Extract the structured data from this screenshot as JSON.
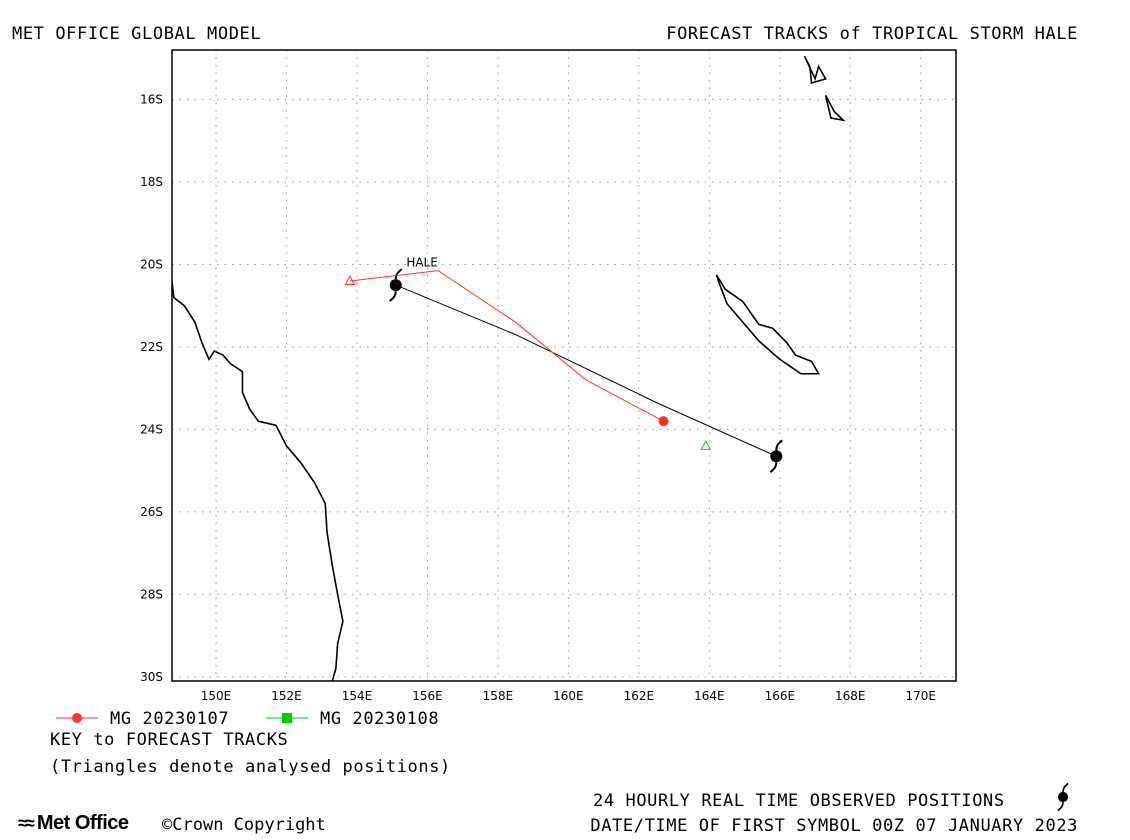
{
  "header": {
    "left_title": "MET OFFICE GLOBAL MODEL",
    "right_title": "FORECAST TRACKS of TROPICAL STORM HALE"
  },
  "map": {
    "lon_range": [
      148.75,
      171.0
    ],
    "lat_range": [
      -30.1,
      -14.8
    ],
    "lon_ticks": [
      {
        "value": 150,
        "label": "150E"
      },
      {
        "value": 152,
        "label": "152E"
      },
      {
        "value": 154,
        "label": "154E"
      },
      {
        "value": 156,
        "label": "156E"
      },
      {
        "value": 158,
        "label": "158E"
      },
      {
        "value": 160,
        "label": "160E"
      },
      {
        "value": 162,
        "label": "162E"
      },
      {
        "value": 164,
        "label": "164E"
      },
      {
        "value": 166,
        "label": "166E"
      },
      {
        "value": 168,
        "label": "168E"
      },
      {
        "value": 170,
        "label": "170E"
      }
    ],
    "lat_ticks": [
      {
        "value": -16,
        "label": "16S"
      },
      {
        "value": -18,
        "label": "18S"
      },
      {
        "value": -20,
        "label": "20S"
      },
      {
        "value": -22,
        "label": "22S"
      },
      {
        "value": -24,
        "label": "24S"
      },
      {
        "value": -26,
        "label": "26S"
      },
      {
        "value": -28,
        "label": "28S"
      },
      {
        "value": -30,
        "label": "30S"
      }
    ],
    "grid": true,
    "storm_label": "HALE",
    "coastlines": [
      [
        [
          148.75,
          -20.4
        ],
        [
          148.8,
          -20.8
        ],
        [
          149.1,
          -21.0
        ],
        [
          149.4,
          -21.4
        ],
        [
          149.6,
          -21.9
        ],
        [
          149.8,
          -22.3
        ],
        [
          149.95,
          -22.1
        ],
        [
          150.2,
          -22.2
        ],
        [
          150.4,
          -22.4
        ],
        [
          150.75,
          -22.6
        ],
        [
          150.75,
          -23.1
        ],
        [
          150.95,
          -23.5
        ],
        [
          151.2,
          -23.8
        ],
        [
          151.7,
          -23.9
        ],
        [
          152.0,
          -24.4
        ],
        [
          152.4,
          -24.8
        ],
        [
          152.8,
          -25.3
        ],
        [
          153.1,
          -25.8
        ],
        [
          153.15,
          -26.5
        ],
        [
          153.3,
          -27.3
        ],
        [
          153.45,
          -28.0
        ],
        [
          153.6,
          -28.65
        ],
        [
          153.45,
          -29.2
        ],
        [
          153.4,
          -29.8
        ],
        [
          153.3,
          -30.1
        ]
      ],
      [
        [
          164.2,
          -20.25
        ],
        [
          164.45,
          -20.6
        ],
        [
          164.95,
          -20.9
        ],
        [
          165.4,
          -21.45
        ],
        [
          165.8,
          -21.55
        ],
        [
          166.2,
          -21.9
        ],
        [
          166.45,
          -22.2
        ],
        [
          166.9,
          -22.35
        ],
        [
          167.1,
          -22.65
        ],
        [
          166.6,
          -22.65
        ],
        [
          166.0,
          -22.3
        ],
        [
          165.4,
          -21.85
        ],
        [
          164.9,
          -21.35
        ],
        [
          164.5,
          -20.95
        ],
        [
          164.3,
          -20.5
        ],
        [
          164.2,
          -20.25
        ]
      ],
      [
        [
          166.7,
          -14.95
        ],
        [
          166.85,
          -15.2
        ],
        [
          166.9,
          -15.6
        ],
        [
          167.3,
          -15.5
        ],
        [
          167.1,
          -15.2
        ],
        [
          167.0,
          -15.5
        ],
        [
          166.7,
          -14.95
        ]
      ],
      [
        [
          167.3,
          -15.9
        ],
        [
          167.55,
          -16.3
        ],
        [
          167.8,
          -16.5
        ],
        [
          167.45,
          -16.45
        ],
        [
          167.3,
          -15.9
        ]
      ]
    ]
  },
  "tracks": [
    {
      "name": "MG 20230107",
      "color": "#ff3333",
      "analysed": [
        153.8,
        -20.4
      ],
      "points": [
        [
          153.8,
          -20.4
        ],
        [
          156.3,
          -20.15
        ],
        [
          158.5,
          -21.4
        ],
        [
          160.5,
          -22.8
        ],
        [
          162.7,
          -23.8
        ]
      ]
    },
    {
      "name": "MG 20230108",
      "color": "#00cc00",
      "analysed": [
        163.9,
        -24.4
      ],
      "points": []
    }
  ],
  "observed_track": {
    "color": "#000000",
    "points": [
      [
        155.1,
        -20.5
      ],
      [
        158.5,
        -21.7
      ],
      [
        162.5,
        -23.35
      ],
      [
        165.9,
        -24.65
      ]
    ]
  },
  "legend": {
    "entries": [
      {
        "label": "MG 20230107",
        "color": "#ff3333"
      },
      {
        "label": "MG 20230108",
        "color": "#00cc00"
      }
    ],
    "key_title": "KEY to FORECAST TRACKS",
    "key_note": "(Triangles denote analysed positions)"
  },
  "footer": {
    "observed_label": "24 HOURLY REAL TIME OBSERVED POSITIONS",
    "first_symbol": "DATE/TIME OF FIRST SYMBOL 00Z 07 JANUARY 2023",
    "logo": "Met Office",
    "copyright": "Crown Copyright"
  }
}
